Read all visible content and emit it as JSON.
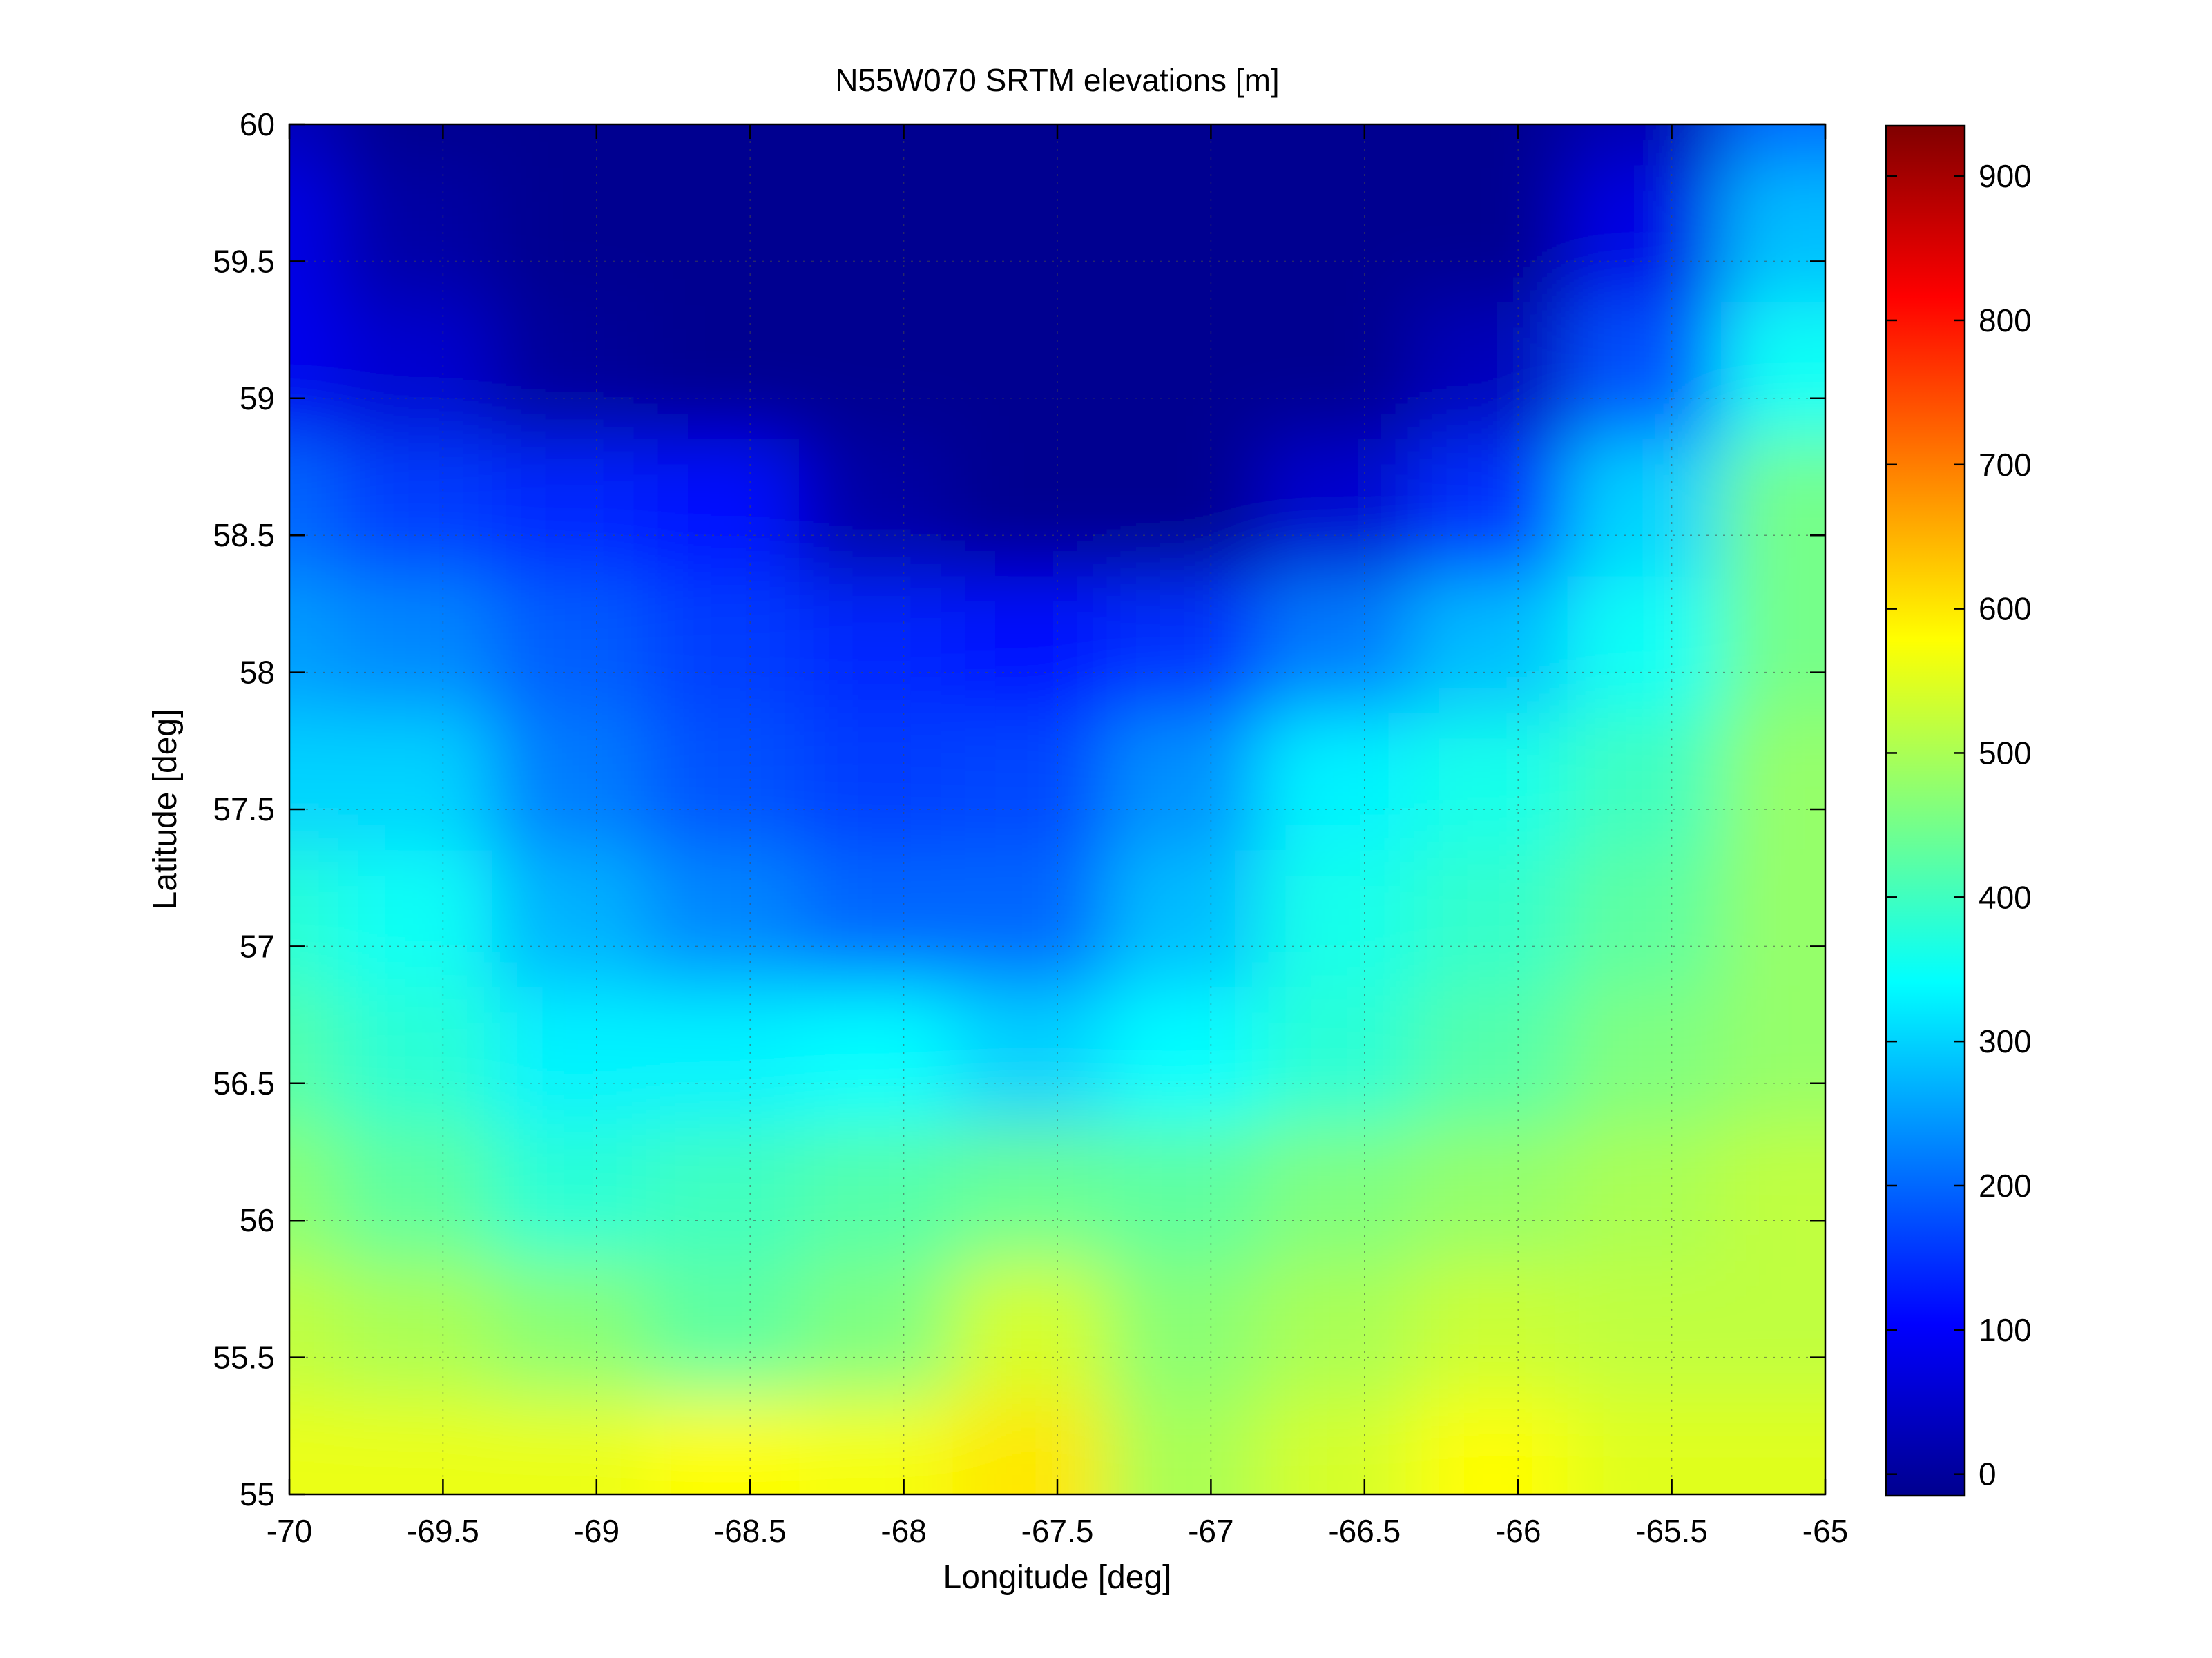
{
  "chart_data": {
    "type": "heatmap",
    "title": "N55W070 SRTM elevations [m]",
    "xlabel": "Longitude [deg]",
    "ylabel": "Latitude [deg]",
    "xlim": [
      -70,
      -65
    ],
    "ylim": [
      55,
      60
    ],
    "x_ticks": [
      -70,
      -69.5,
      -69,
      -68.5,
      -68,
      -67.5,
      -67,
      -66.5,
      -66,
      -65.5,
      -65
    ],
    "x_tick_labels": [
      "-70",
      "-69.5",
      "-69",
      "-68.5",
      "-68",
      "-67.5",
      "-67",
      "-66.5",
      "-66",
      "-65.5",
      "-65"
    ],
    "y_ticks": [
      55,
      55.5,
      56,
      56.5,
      57,
      57.5,
      58,
      58.5,
      59,
      59.5,
      60
    ],
    "y_tick_labels": [
      "55",
      "55.5",
      "56",
      "56.5",
      "57",
      "57.5",
      "58",
      "58.5",
      "59",
      "59.5",
      "60"
    ],
    "grid": true,
    "colormap": "jet",
    "colorbar": {
      "clim": [
        -15,
        935
      ],
      "ticks": [
        0,
        100,
        200,
        300,
        400,
        500,
        600,
        700,
        800,
        900
      ],
      "tick_labels": [
        "0",
        "100",
        "200",
        "300",
        "400",
        "500",
        "600",
        "700",
        "800",
        "900"
      ]
    },
    "elevation_grid_approx": {
      "lon": [
        -70,
        -69.5,
        -69,
        -68.5,
        -68,
        -67.5,
        -67,
        -66.5,
        -66,
        -65.5,
        -65
      ],
      "lat": [
        60,
        59.5,
        59,
        58.5,
        58,
        57.5,
        57,
        56.5,
        56,
        55.5,
        55
      ],
      "values": [
        [
          40,
          0,
          0,
          0,
          0,
          0,
          0,
          0,
          0,
          30,
          200
        ],
        [
          80,
          20,
          0,
          0,
          0,
          0,
          0,
          0,
          0,
          80,
          280
        ],
        [
          90,
          60,
          10,
          0,
          0,
          0,
          0,
          0,
          40,
          180,
          350
        ],
        [
          200,
          160,
          140,
          110,
          20,
          0,
          0,
          60,
          150,
          300,
          450
        ],
        [
          250,
          230,
          190,
          160,
          140,
          120,
          150,
          220,
          280,
          350,
          450
        ],
        [
          300,
          300,
          220,
          180,
          160,
          170,
          240,
          330,
          360,
          400,
          480
        ],
        [
          380,
          350,
          270,
          230,
          200,
          200,
          280,
          360,
          390,
          430,
          480
        ],
        [
          420,
          380,
          330,
          330,
          340,
          300,
          340,
          380,
          420,
          460,
          480
        ],
        [
          470,
          430,
          380,
          400,
          420,
          440,
          430,
          460,
          480,
          500,
          520
        ],
        [
          520,
          500,
          470,
          430,
          460,
          540,
          470,
          500,
          530,
          520,
          520
        ],
        [
          560,
          560,
          560,
          580,
          570,
          600,
          500,
          540,
          580,
          550,
          550
        ]
      ]
    }
  }
}
